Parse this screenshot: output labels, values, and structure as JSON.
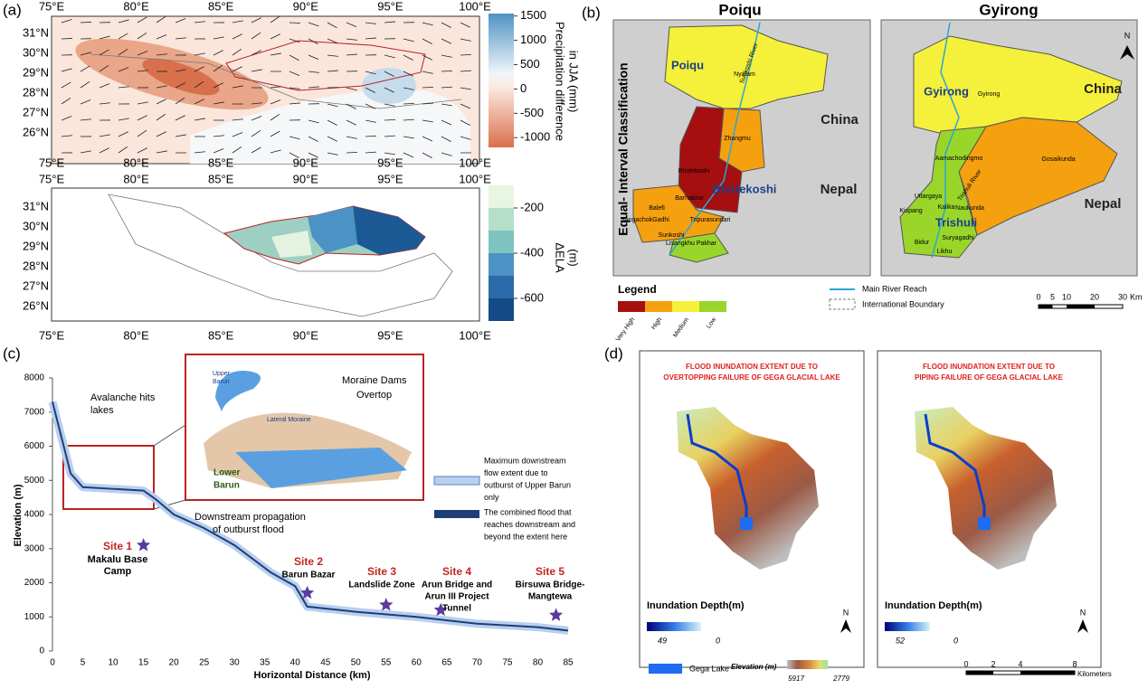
{
  "panel_a": {
    "label": "(a)",
    "lon_ticks": [
      "75°E",
      "80°E",
      "85°E",
      "90°E",
      "95°E",
      "100°E"
    ],
    "lat_ticks": [
      "31°N",
      "30°N",
      "29°N",
      "28°N",
      "27°N",
      "26°N"
    ],
    "colorbar_precip": {
      "label_lines": [
        "Precipitation difference",
        "in JJA (mm)"
      ],
      "clim": [
        -1200,
        1550
      ],
      "ticks": [
        1500,
        1000,
        500,
        0,
        -500,
        -1000
      ]
    },
    "colorbar_ela": {
      "label_lines": [
        "ΔELA",
        "(m)"
      ],
      "clim": [
        -700,
        -100
      ],
      "ticks": [
        -200,
        -400,
        -600
      ]
    }
  },
  "panel_b": {
    "label": "(b)",
    "titles": [
      "Poiqu",
      "Gyirong"
    ],
    "side_label": "Equal- Interval Classification",
    "poiqu_labels": [
      "Poiqu",
      "Sunkoshi River",
      "Nyalam",
      "China",
      "Zhangmu",
      "Bhotekoshi",
      "Bhotekoshi",
      "Barhabise",
      "Balefi",
      "SangachokGadhi",
      "Tripurasundari",
      "Sunkoshi",
      "Lisangkhu Pakhar",
      "Nepal"
    ],
    "gyirong_labels": [
      "Gyirong",
      "Gyirong",
      "China",
      "Aamachodingmo",
      "Trishuli River",
      "Gosaikunda",
      "Uttargaya",
      "Kalika",
      "Naukunda",
      "Kispang",
      "Trishuli",
      "Suryagadhi",
      "Bidur",
      "Likhu",
      "Nepal"
    ],
    "north": "N",
    "legend": {
      "title": "Legend",
      "classes": [
        {
          "name": "Very High",
          "color": "#a50f0f"
        },
        {
          "name": "High",
          "color": "#f5a00f"
        },
        {
          "name": "Medium",
          "color": "#f5f03a"
        },
        {
          "name": "Low",
          "color": "#9ad62a"
        }
      ]
    },
    "river_legend": "Main River Reach",
    "boundary_legend": "International Boundary",
    "scale": {
      "ticks": [
        0,
        5,
        10,
        20,
        30
      ],
      "unit": "Km"
    }
  },
  "panel_c": {
    "label": "(c)",
    "ylabel": "Elevation (m)",
    "xlabel": "Horizontal Distance (km)",
    "xlim": [
      0,
      85
    ],
    "ylim": [
      0,
      8000
    ],
    "xticks": [
      0,
      5,
      10,
      15,
      20,
      25,
      30,
      35,
      40,
      45,
      50,
      55,
      60,
      65,
      70,
      75,
      80,
      85
    ],
    "yticks": [
      0,
      1000,
      2000,
      3000,
      4000,
      5000,
      6000,
      7000,
      8000
    ],
    "profile": {
      "x": [
        0,
        3,
        5,
        10,
        15,
        17,
        20,
        25,
        30,
        36,
        40,
        42,
        50,
        60,
        70,
        80,
        85
      ],
      "elevation": [
        7300,
        5200,
        4800,
        4750,
        4700,
        4450,
        4000,
        3600,
        3100,
        2300,
        1900,
        1300,
        1150,
        1000,
        800,
        700,
        600
      ]
    },
    "annotations": {
      "avalanche": [
        "Avalanche hits",
        "lakes"
      ],
      "upper_barun": [
        "Upper",
        "Barun"
      ],
      "moraine": [
        "Moraine Dams",
        "Overtop"
      ],
      "lateral": "Lateral Moraine",
      "lower_barun": [
        "Lower",
        "Barun"
      ],
      "propagation": [
        "Downstream propagation",
        "of outburst flood"
      ]
    },
    "legend": [
      [
        "Maximum downstream",
        "flow extent due to",
        "outburst of Upper Barun",
        "only"
      ],
      [
        "The combined flood that",
        "reaches downstream and",
        "beyond the extent here"
      ]
    ],
    "sites": [
      {
        "label": "Site 1",
        "name": [
          "Makalu Base",
          "Camp"
        ],
        "x": 15,
        "y": 3100
      },
      {
        "label": "Site 2",
        "name": [
          "Barun Bazar"
        ],
        "x": 42,
        "y": 1700
      },
      {
        "label": "Site 3",
        "name": [
          "Landslide Zone"
        ],
        "x": 55,
        "y": 1350
      },
      {
        "label": "Site 4",
        "name": [
          "Arun Bridge and",
          "Arun III Project",
          "Tunnel"
        ],
        "x": 64,
        "y": 1200
      },
      {
        "label": "Site 5",
        "name": [
          "Birsuwa Bridge-",
          "Mangtewa"
        ],
        "x": 83,
        "y": 1050
      }
    ]
  },
  "panel_d": {
    "label": "(d)",
    "titles": [
      [
        "FLOOD INUNDATION EXTENT DUE TO",
        "OVERTOPPING FAILURE OF GEGA GLACIAL LAKE"
      ],
      [
        "FLOOD INUNDATION EXTENT DUE TO",
        "PIPING FAILURE OF GEGA GLACIAL LAKE"
      ]
    ],
    "depth_label": "Inundation Depth(m)",
    "depth_ranges": [
      [
        49,
        0
      ],
      [
        52,
        0
      ]
    ],
    "north": "N",
    "lake_legend": "Gega Lake",
    "elevation_label": "Elevation (m)",
    "elevation_range": [
      5917,
      2779
    ],
    "scale": {
      "ticks": [
        0,
        2,
        4,
        8
      ],
      "unit": "Kilometers"
    }
  }
}
